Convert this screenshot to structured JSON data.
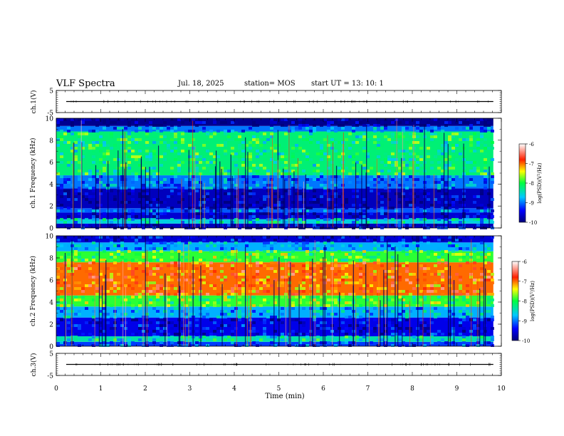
{
  "header": {
    "title": "VLF Spectra",
    "date": "Jul. 18, 2025",
    "station": "station= MOS",
    "start": "start UT =  13: 10: 1"
  },
  "chart_data": [
    {
      "type": "line",
      "panel": "ch1-waveform",
      "ylabel": "ch.1(V)",
      "ylim": [
        -5,
        5
      ],
      "yticks": [
        "5",
        "-5"
      ],
      "xlim": [
        0,
        10
      ],
      "baseline": 0
    },
    {
      "type": "heatmap",
      "panel": "ch1-spectrogram",
      "ylabel": "ch.1 Frequency (kHz)",
      "ylim": [
        0,
        10
      ],
      "yticks": [
        "0",
        "2",
        "4",
        "6",
        "8",
        "10"
      ],
      "xlim": [
        0,
        10
      ],
      "data_end_min": 9.82,
      "colorbar": {
        "label": "log(PSD)(V²/Hz)",
        "range": [
          -10,
          -6
        ],
        "ticks": [
          "-6",
          "-7",
          "-8",
          "-9",
          "-10"
        ]
      },
      "bands": [
        {
          "from_khz": 0,
          "to_khz": 0.4,
          "log_psd": -9.7
        },
        {
          "from_khz": 0.4,
          "to_khz": 0.8,
          "log_psd": -8.6
        },
        {
          "from_khz": 0.8,
          "to_khz": 1.4,
          "log_psd": -9.6
        },
        {
          "from_khz": 1.4,
          "to_khz": 1.8,
          "log_psd": -9.1
        },
        {
          "from_khz": 1.8,
          "to_khz": 3.6,
          "log_psd": -9.7
        },
        {
          "from_khz": 3.6,
          "to_khz": 4.8,
          "log_psd": -9.0
        },
        {
          "from_khz": 4.8,
          "to_khz": 8.8,
          "log_psd": -8.2
        },
        {
          "from_khz": 8.8,
          "to_khz": 9.3,
          "log_psd": -9.0
        },
        {
          "from_khz": 9.3,
          "to_khz": 10,
          "log_psd": -9.9
        }
      ]
    },
    {
      "type": "heatmap",
      "panel": "ch2-spectrogram",
      "ylabel": "ch.2 Frequency (kHz)",
      "ylim": [
        0,
        10
      ],
      "yticks": [
        "0",
        "2",
        "4",
        "6",
        "8",
        "10"
      ],
      "xlim": [
        0,
        10
      ],
      "data_end_min": 9.82,
      "colorbar": {
        "label": "log(PSD)(V²/Hz)",
        "range": [
          -10,
          -6
        ],
        "ticks": [
          "-6",
          "-7",
          "-8",
          "-9",
          "-10"
        ]
      },
      "bands": [
        {
          "from_khz": 0,
          "to_khz": 0.4,
          "log_psd": -9.2
        },
        {
          "from_khz": 0.4,
          "to_khz": 0.9,
          "log_psd": -8.4
        },
        {
          "from_khz": 0.9,
          "to_khz": 2.6,
          "log_psd": -9.5
        },
        {
          "from_khz": 2.6,
          "to_khz": 3.6,
          "log_psd": -8.8
        },
        {
          "from_khz": 3.6,
          "to_khz": 4.6,
          "log_psd": -7.9
        },
        {
          "from_khz": 4.6,
          "to_khz": 7.6,
          "log_psd": -7.0
        },
        {
          "from_khz": 7.6,
          "to_khz": 8.6,
          "log_psd": -7.9
        },
        {
          "from_khz": 8.6,
          "to_khz": 9.4,
          "log_psd": -8.8
        },
        {
          "from_khz": 9.4,
          "to_khz": 10,
          "log_psd": -9.6
        }
      ]
    },
    {
      "type": "line",
      "panel": "ch3-waveform",
      "ylabel": "ch.3(V)",
      "ylim": [
        -5,
        5
      ],
      "yticks": [
        "5",
        "-5"
      ],
      "xlim": [
        0,
        10
      ],
      "baseline": 0
    }
  ],
  "xaxis": {
    "label": "Time (min)",
    "ticks": [
      "0",
      "1",
      "2",
      "3",
      "4",
      "5",
      "6",
      "7",
      "8",
      "9",
      "10"
    ]
  }
}
